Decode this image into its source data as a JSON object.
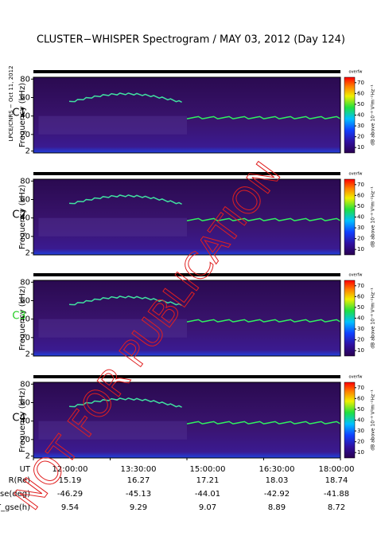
{
  "title": "CLUSTER−WHISPER Spectrogram / MAY 03, 2012 (Day 124)",
  "side_label": "LPCE/CNRS − Oct 11, 2012",
  "watermark": "NOT FOR PUBLICATION",
  "chart_data": [
    {
      "type": "spectrogram",
      "name": "C1",
      "name_color": "#000000",
      "ylabel": "Frequency (kHz)",
      "ylim": [
        0,
        82
      ],
      "yticks": [
        2,
        20,
        40,
        60,
        80
      ],
      "xlim": [
        12,
        18
      ],
      "colorbar_top": "overfw",
      "colorbar_label": "dB above 10⁻⁸ V²m⁻²Hz⁻¹",
      "clim": [
        5,
        75
      ],
      "cticks": [
        10,
        20,
        30,
        40,
        50,
        60,
        70
      ]
    },
    {
      "type": "spectrogram",
      "name": "C2",
      "name_color": "#000000",
      "ylabel": "Frequency (kHz)",
      "ylim": [
        0,
        82
      ],
      "yticks": [
        2,
        20,
        40,
        60,
        80
      ],
      "xlim": [
        12,
        18
      ],
      "colorbar_top": "overfw",
      "colorbar_label": "dB above 10⁻⁸ V²m⁻²Hz⁻¹",
      "clim": [
        5,
        75
      ],
      "cticks": [
        10,
        20,
        30,
        40,
        50,
        60,
        70
      ]
    },
    {
      "type": "spectrogram",
      "name": "C3",
      "name_color": "#22cc22",
      "ylabel": "Frequency (kHz)",
      "ylim": [
        0,
        82
      ],
      "yticks": [
        2,
        20,
        40,
        60,
        80
      ],
      "xlim": [
        12,
        18
      ],
      "colorbar_top": "overfw",
      "colorbar_label": "dB above 10⁻⁸ V²m⁻²Hz⁻¹",
      "clim": [
        5,
        75
      ],
      "cticks": [
        10,
        20,
        30,
        40,
        50,
        60,
        70
      ]
    },
    {
      "type": "spectrogram",
      "name": "C4",
      "name_color": "#000000",
      "ylabel": "Frequency (kHz)",
      "ylim": [
        0,
        82
      ],
      "yticks": [
        2,
        20,
        40,
        60,
        80
      ],
      "xlim": [
        12,
        18
      ],
      "colorbar_top": "overfw",
      "colorbar_label": "dB above 10⁻⁸ V²m⁻²Hz⁻¹",
      "clim": [
        5,
        75
      ],
      "cticks": [
        10,
        20,
        30,
        40,
        50,
        60,
        70
      ]
    }
  ],
  "ephemeris": {
    "time_label": "UT",
    "times": [
      {
        "value": 12,
        "label": "12:00:00"
      },
      {
        "value": 13.5,
        "label": "13:30:00"
      },
      {
        "value": 15,
        "label": "15:00:00"
      },
      {
        "value": 16.5,
        "label": "16:30:00"
      },
      {
        "value": 18,
        "label": "18:00:00"
      }
    ],
    "rows": [
      {
        "label": "R(Re)",
        "values": [
          15.19,
          16.27,
          17.21,
          18.03,
          18.74
        ]
      },
      {
        "label": "Lat_gse(deg)",
        "values": [
          -46.29,
          -45.13,
          -44.01,
          -42.92,
          -41.88
        ]
      },
      {
        "label": "LT_gse(h)",
        "values": [
          9.54,
          9.29,
          9.07,
          8.89,
          8.72
        ]
      }
    ]
  }
}
